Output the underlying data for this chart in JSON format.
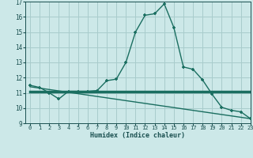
{
  "xlabel": "Humidex (Indice chaleur)",
  "curve_x": [
    0,
    1,
    2,
    3,
    4,
    5,
    6,
    7,
    8,
    9,
    10,
    11,
    12,
    13,
    14,
    15,
    16,
    17,
    18,
    19,
    20,
    21,
    22,
    23
  ],
  "curve_y": [
    11.5,
    11.35,
    11.0,
    10.6,
    11.1,
    11.1,
    11.1,
    11.15,
    11.8,
    11.9,
    13.0,
    15.0,
    16.1,
    16.2,
    16.85,
    15.3,
    12.7,
    12.55,
    11.85,
    10.9,
    10.05,
    9.85,
    9.75,
    9.3
  ],
  "trend_x": [
    0,
    23
  ],
  "trend_y": [
    11.1,
    11.1
  ],
  "trend2_x": [
    0,
    23
  ],
  "trend2_y": [
    11.4,
    9.3
  ],
  "line_color": "#1a6e60",
  "bg_color": "#cce8e8",
  "grid_color": "#a8cccc",
  "ylim": [
    9,
    17
  ],
  "xlim": [
    -0.5,
    23
  ],
  "yticks": [
    9,
    10,
    11,
    12,
    13,
    14,
    15,
    16,
    17
  ],
  "xticks": [
    0,
    1,
    2,
    3,
    4,
    5,
    6,
    7,
    8,
    9,
    10,
    11,
    12,
    13,
    14,
    15,
    16,
    17,
    18,
    19,
    20,
    21,
    22,
    23
  ]
}
